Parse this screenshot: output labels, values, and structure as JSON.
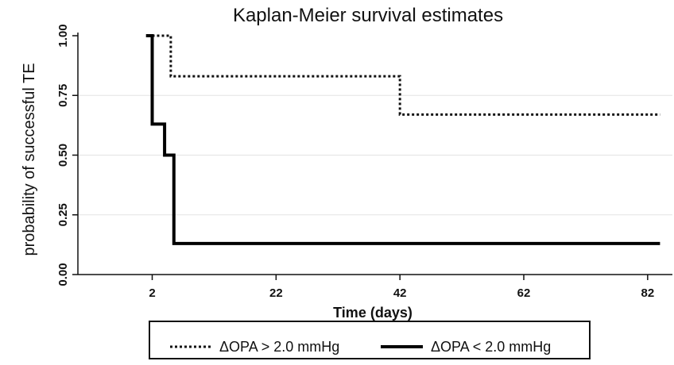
{
  "chart_data": {
    "type": "line",
    "title": "Kaplan-Meier survival estimates",
    "xlabel": "Time (days)",
    "ylabel": "probability of successful TE",
    "xlim": [
      -10,
      86
    ],
    "ylim": [
      0,
      1
    ],
    "x_ticks": [
      2,
      22,
      42,
      62,
      82
    ],
    "y_ticks": [
      0,
      0.25,
      0.5,
      0.75,
      1
    ],
    "y_tick_labels": [
      "0.00",
      "0.25",
      "0.50",
      "0.75",
      "1.00"
    ],
    "grid": "horizontal",
    "legend_position": "bottom",
    "series": [
      {
        "name": "ΔOPA > 2.0 mmHg",
        "style": "dotted",
        "color": "#111111",
        "steps": [
          {
            "x": 2,
            "y": 1.0
          },
          {
            "x": 5,
            "y": 0.83
          },
          {
            "x": 42,
            "y": 0.67
          },
          {
            "x": 84,
            "y": 0.67
          }
        ]
      },
      {
        "name": "ΔOPA < 2.0 mmHg",
        "style": "solid",
        "color": "#000000",
        "steps": [
          {
            "x": 1,
            "y": 1.0
          },
          {
            "x": 2,
            "y": 0.63
          },
          {
            "x": 4,
            "y": 0.5
          },
          {
            "x": 5.5,
            "y": 0.13
          },
          {
            "x": 84,
            "y": 0.13
          }
        ]
      }
    ]
  }
}
